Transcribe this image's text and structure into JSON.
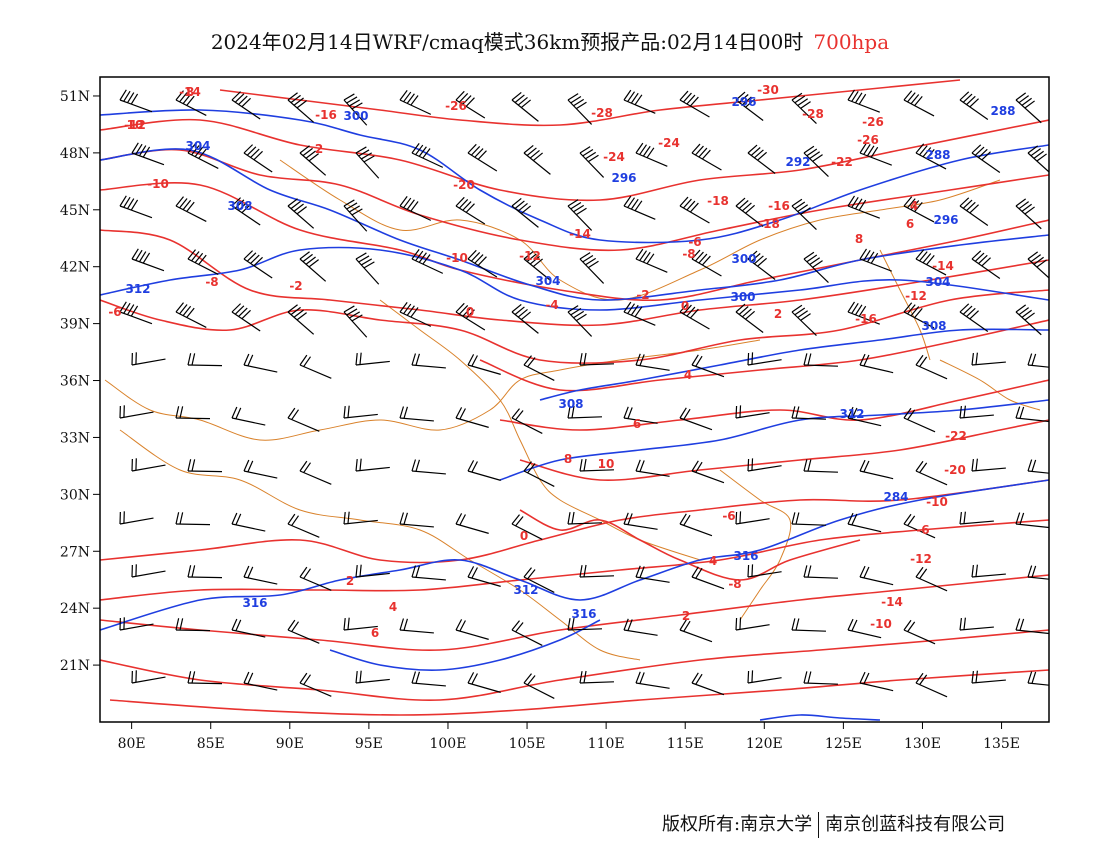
{
  "title": {
    "text": "2024年02月14日WRF/cmaq模式36km预报产品:02月14日00时",
    "level": "700hpa",
    "level_color": "#e8322f"
  },
  "map": {
    "lon_range": [
      78,
      138
    ],
    "lat_range": [
      18,
      52
    ],
    "lon_ticks": [
      "80E",
      "85E",
      "90E",
      "95E",
      "100E",
      "105E",
      "110E",
      "115E",
      "120E",
      "125E",
      "130E",
      "135E"
    ],
    "lat_ticks": [
      "51N",
      "48N",
      "45N",
      "42N",
      "39N",
      "36N",
      "33N",
      "30N",
      "27N",
      "24N",
      "21N"
    ],
    "temperature_color": "#e8322f",
    "height_color": "#1f3ee0",
    "border_color": "#d9822b",
    "barb_color": "#000000"
  },
  "temperature_labels": [
    "-14",
    "-12",
    "-16",
    "-26",
    "-28",
    "-30",
    "-28",
    "-26",
    "-24",
    "-26",
    "-24",
    "-22",
    "-20",
    "-18",
    "-16",
    "-14",
    "-12",
    "-10",
    "-8",
    "-6",
    "-4",
    "-2",
    "0",
    "2",
    "4",
    "6",
    "8",
    "10",
    "-10",
    "-8",
    "-6",
    "-2",
    "0",
    "2",
    "4",
    "6",
    "8",
    "-18",
    "-14",
    "-12",
    "-16",
    "-22",
    "-20",
    "-10",
    "-6",
    "-12",
    "-14",
    "-10",
    "-8",
    "-6",
    "4",
    "2",
    "0",
    "2",
    "4",
    "6",
    "8",
    "10"
  ],
  "height_labels": [
    "304",
    "300",
    "296",
    "292",
    "288",
    "296",
    "308",
    "304",
    "300",
    "312",
    "308",
    "304",
    "312",
    "316",
    "316",
    "316",
    "312",
    "308",
    "300",
    "296",
    "288",
    "284"
  ],
  "footer": {
    "left": "版权所有:南京大学",
    "right": "南京创蓝科技有限公司"
  }
}
